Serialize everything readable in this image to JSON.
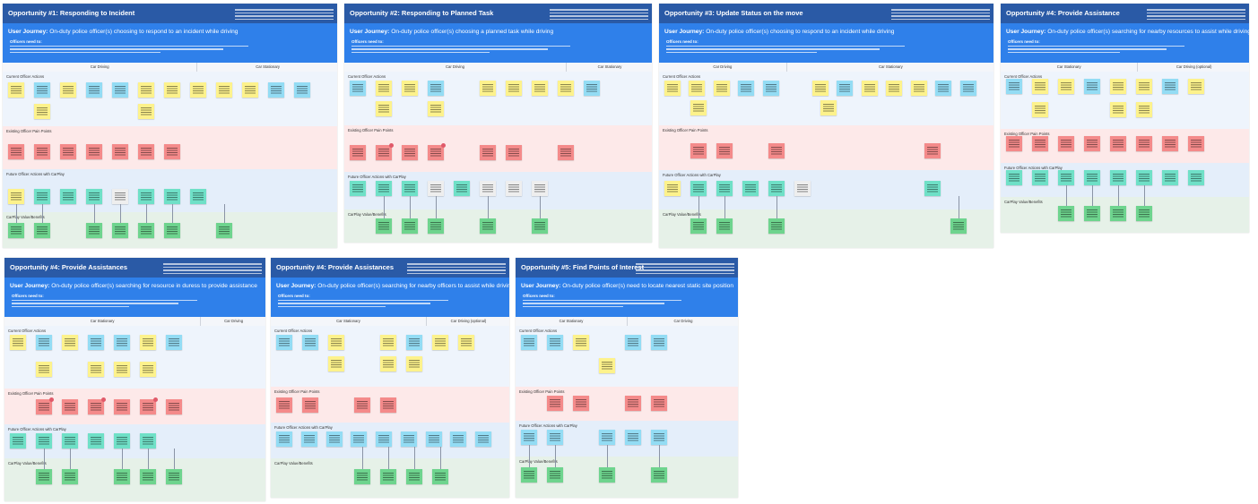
{
  "colors": {
    "header": "#2a5aa6",
    "journey": "#2f80ea",
    "sticky_yellow": "#fdf28c",
    "sticky_cyan": "#93dcf4",
    "sticky_red": "#f48a8a",
    "sticky_teal": "#6fe0c7",
    "sticky_green": "#6ed48e"
  },
  "boards": [
    {
      "title": "Opportunity #1: Responding to Incident",
      "journey_label": "User Journey:",
      "journey": "On-duty police officer(s) choosing to respond to an incident while driving",
      "needs_label": "Officers need to:",
      "phases": [
        "Car Driving",
        "Car Stationary"
      ],
      "lanes": [
        "Current Officer Actions",
        "Existing Officer Pain Points",
        "Future Officer Actions with CarPlay",
        "CarPlay Value/Benefits"
      ]
    },
    {
      "title": "Opportunity #2: Responding to Planned Task",
      "journey_label": "User Journey:",
      "journey": "On-duty police officer(s) choosing a planned task while driving",
      "needs_label": "Officers need to:",
      "phases": [
        "Car Driving",
        "Car Stationary"
      ],
      "lanes": [
        "Current Officer Actions",
        "Existing Officer Pain Points",
        "Future Officer Actions with CarPlay",
        "CarPlay Value/Benefits"
      ]
    },
    {
      "title": "Opportunity #3: Update Status on the move",
      "journey_label": "User Journey:",
      "journey": "On-duty police officer(s) choosing to respond to an incident while driving",
      "needs_label": "Officers need to:",
      "phases": [
        "Car Driving",
        "Car Stationary"
      ],
      "lanes": [
        "Current Officer Actions",
        "Existing Officer Pain Points",
        "Future Officer Actions with CarPlay",
        "CarPlay Value/Benefits"
      ]
    },
    {
      "title": "Opportunity #4: Provide Assistance",
      "journey_label": "User Journey:",
      "journey": "On-duty police officer(s) searching for nearby resources to assist while driving",
      "needs_label": "Officers need to:",
      "phases": [
        "Car Stationary",
        "Car Driving (optional)"
      ],
      "lanes": [
        "Current Officer Actions",
        "Existing Officer Pain Points",
        "Future Officer Actions with CarPlay",
        "CarPlay Value/Benefits"
      ]
    },
    {
      "title": "Opportunity #4: Provide Assistances",
      "journey_label": "User Journey:",
      "journey": "On-duty police officer(s) searching for resource in duress to provide assistance",
      "needs_label": "Officers need to:",
      "phases": [
        "Car Stationary",
        "Car Driving"
      ],
      "lanes": [
        "Current Officer Actions",
        "Existing Officer Pain Points",
        "Future Officer Actions with CarPlay",
        "CarPlay Value/Benefits"
      ]
    },
    {
      "title": "Opportunity #4: Provide Assistances",
      "journey_label": "User Journey:",
      "journey": "On-duty police officer(s) searching for nearby officers to assist while driving",
      "needs_label": "Officers need to:",
      "phases": [
        "Car Stationary",
        "Car Driving (optional)"
      ],
      "lanes": [
        "Current Officer Actions",
        "Existing Officer Pain Points",
        "Future Officer Actions with CarPlay",
        "CarPlay Value/Benefits"
      ]
    },
    {
      "title": "Opportunity #5: Find Points of Interest",
      "journey_label": "User Journey:",
      "journey": "On-duty police officer(s) need to locate nearest static site position",
      "needs_label": "Officers need to:",
      "phases": [
        "Car Stationary",
        "Car Driving"
      ],
      "lanes": [
        "Current Officer Actions",
        "Existing Officer Pain Points",
        "Future Officer Actions with CarPlay",
        "CarPlay Value/Benefits"
      ]
    }
  ],
  "icons": [
    "sticky-note-icon",
    "pain-dot-icon"
  ]
}
